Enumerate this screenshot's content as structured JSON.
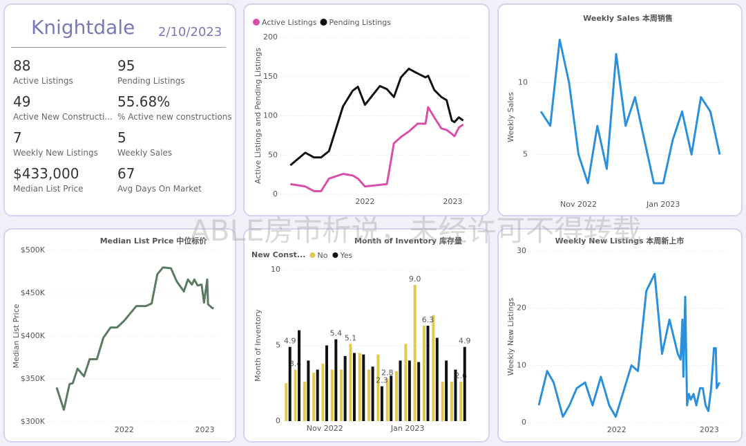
{
  "kpi": {
    "title": "Knightdale",
    "date": "2/10/2023",
    "items": [
      {
        "value": "88",
        "label": "Active Listings"
      },
      {
        "value": "95",
        "label": "Pending Listings"
      },
      {
        "value": "49",
        "label": "Active New Constructi..."
      },
      {
        "value": "55.68%",
        "label": "% Active new constructions"
      },
      {
        "value": "7",
        "label": "Weekly New Listings"
      },
      {
        "value": "5",
        "label": "Weekly Sales"
      },
      {
        "value": "$433,000",
        "label": "Median List Price"
      },
      {
        "value": "67",
        "label": "Avg Days On Market"
      }
    ]
  },
  "watermark": "ABLE房市析说，未经许可不得转载",
  "chart_data": [
    {
      "type": "line",
      "y_label": "Active Listings and Pending Listings",
      "legend": "top-left",
      "x": [
        2021.15,
        2021.32,
        2021.42,
        2021.5,
        2021.59,
        2021.75,
        2021.86,
        2021.92,
        2022.0,
        2022.17,
        2022.25,
        2022.33,
        2022.41,
        2022.5,
        2022.6,
        2022.69,
        2022.72,
        2022.79,
        2022.87,
        2022.93,
        2022.99,
        2023.02,
        2023.07,
        2023.12
      ],
      "series": [
        {
          "name": "Active Listings",
          "color": "#d84fa8",
          "values": [
            13,
            10,
            4,
            4,
            20,
            26,
            24,
            20,
            10,
            12,
            13,
            65,
            73,
            80,
            90,
            90,
            111,
            98,
            84,
            82,
            77,
            74,
            85,
            89
          ]
        },
        {
          "name": "Pending Listings",
          "color": "#111111",
          "values": [
            37,
            53,
            47,
            47,
            55,
            112,
            132,
            137,
            114,
            138,
            134,
            124,
            149,
            160,
            154,
            149,
            151,
            133,
            124,
            120,
            94,
            92,
            98,
            94
          ]
        }
      ],
      "xlim": [
        2021.1,
        2023.17
      ],
      "xticks": [
        2022,
        2023
      ],
      "ylim": [
        0,
        200
      ],
      "yticks": [
        0,
        50,
        100,
        150,
        200
      ],
      "grid": true
    },
    {
      "type": "line",
      "title": "Weekly Sales 本周销售",
      "y_label": "Weekly Sales",
      "categories": [
        null,
        null,
        null,
        null,
        "Nov 2022",
        null,
        null,
        null,
        null,
        null,
        null,
        null,
        null,
        "Jan 2023",
        null,
        null,
        null,
        null,
        null,
        null
      ],
      "series": [
        {
          "name": "Weekly Sales",
          "color": "#2a8fdc",
          "values": [
            8,
            7,
            13,
            10,
            5,
            3,
            7,
            4,
            12,
            7,
            9,
            6,
            3,
            3,
            6,
            8,
            5,
            9,
            8,
            5
          ]
        }
      ],
      "ylim": [
        1.7,
        13.5
      ],
      "yticks": [
        5,
        10
      ],
      "grid": true
    },
    {
      "type": "line",
      "title": "Median List Price  中位标价",
      "y_label": "Median List Price",
      "x": [
        2021.16,
        2021.25,
        2021.32,
        2021.36,
        2021.42,
        2021.5,
        2021.57,
        2021.66,
        2021.74,
        2021.83,
        2021.91,
        2022.0,
        2022.15,
        2022.27,
        2022.34,
        2022.41,
        2022.48,
        2022.58,
        2022.65,
        2022.74,
        2022.79,
        2022.84,
        2022.87,
        2022.91,
        2022.96,
        2022.99,
        2023.03,
        2023.04,
        2023.09,
        2023.11
      ],
      "series": [
        {
          "name": "Median List Price",
          "color": "#5a7a62",
          "values": [
            340000,
            314000,
            344000,
            345000,
            362000,
            353000,
            373000,
            373000,
            398000,
            410000,
            410000,
            418000,
            435000,
            435000,
            438000,
            472000,
            480000,
            479000,
            464000,
            452000,
            466000,
            460000,
            466000,
            459000,
            460000,
            439000,
            466000,
            437000,
            433000,
            432000
          ]
        }
      ],
      "xlim": [
        2021.1,
        2023.15
      ],
      "xticks": [
        2022,
        2023
      ],
      "ylim": [
        300000,
        500000
      ],
      "yticks": [
        {
          "value": 300000,
          "label": "$300K"
        },
        {
          "value": 350000,
          "label": "$350K"
        },
        {
          "value": 400000,
          "label": "$400K"
        },
        {
          "value": 450000,
          "label": "$450K"
        },
        {
          "value": 500000,
          "label": "$500K"
        }
      ],
      "grid": true
    },
    {
      "type": "bar",
      "title": "Month of Inventory 库存量",
      "y_label": "Month of Inventory",
      "legend_title": "New Const...",
      "categories": [
        null,
        null,
        null,
        null,
        "Nov 2022",
        null,
        null,
        null,
        null,
        null,
        null,
        null,
        null,
        "Jan 2023",
        null,
        null,
        null,
        null,
        null,
        null
      ],
      "series": [
        {
          "name": "No",
          "color": "#e3c84e",
          "values": [
            2.5,
            3.4,
            2.6,
            3.2,
            3.8,
            3.4,
            3.4,
            5.1,
            4.5,
            3.4,
            4.4,
            2.8,
            3.3,
            5.1,
            9.0,
            6.3,
            7.0,
            2.6,
            2.6,
            2.6
          ],
          "value_labels": [
            null,
            "3.4",
            null,
            null,
            null,
            null,
            null,
            "5.1",
            null,
            null,
            null,
            "2.8",
            null,
            null,
            "9.0",
            null,
            null,
            null,
            null,
            "2.6"
          ]
        },
        {
          "name": "Yes",
          "color": "#111111",
          "values": [
            4.9,
            6.0,
            4.0,
            3.4,
            5.0,
            5.4,
            4.3,
            4.5,
            4.4,
            3.6,
            2.3,
            3.0,
            4.0,
            4.0,
            3.9,
            6.3,
            5.5,
            4.0,
            3.4,
            4.9
          ],
          "value_labels": [
            "4.9",
            null,
            null,
            null,
            null,
            "5.4",
            null,
            null,
            null,
            null,
            "2.3",
            null,
            null,
            null,
            null,
            "6.3",
            null,
            null,
            null,
            "4.9"
          ]
        }
      ],
      "ylim": [
        0,
        10
      ],
      "yticks": [
        0,
        5,
        10
      ],
      "grid": true
    },
    {
      "type": "line",
      "title": "Weekly New Listings  本周新上市",
      "y_label": "Weekly New Listings",
      "x": [
        2021.16,
        2021.25,
        2021.32,
        2021.42,
        2021.49,
        2021.57,
        2021.66,
        2021.74,
        2021.83,
        2021.92,
        2021.99,
        2022.16,
        2022.23,
        2022.32,
        2022.41,
        2022.49,
        2022.57,
        2022.66,
        2022.69,
        2022.71,
        2022.72,
        2022.74,
        2022.76,
        2022.78,
        2022.8,
        2022.83,
        2022.86,
        2022.9,
        2022.93,
        2022.96,
        2022.99,
        2023.02,
        2023.05,
        2023.07,
        2023.08,
        2023.11
      ],
      "series": [
        {
          "name": "Weekly New Listings",
          "color": "#2a8fdc",
          "values": [
            3,
            9,
            7,
            1,
            3,
            6,
            7,
            3,
            8,
            3,
            1,
            10,
            9,
            23,
            26,
            12,
            18,
            12,
            11,
            18,
            8,
            22,
            3,
            5,
            4,
            5,
            3,
            6,
            6,
            3,
            2,
            6,
            13,
            13,
            6,
            7
          ]
        }
      ],
      "xlim": [
        2021.1,
        2023.15
      ],
      "xticks": [
        2022,
        2023
      ],
      "ylim": [
        0,
        30
      ],
      "yticks": [
        0,
        10,
        20,
        30
      ],
      "grid": true
    }
  ]
}
